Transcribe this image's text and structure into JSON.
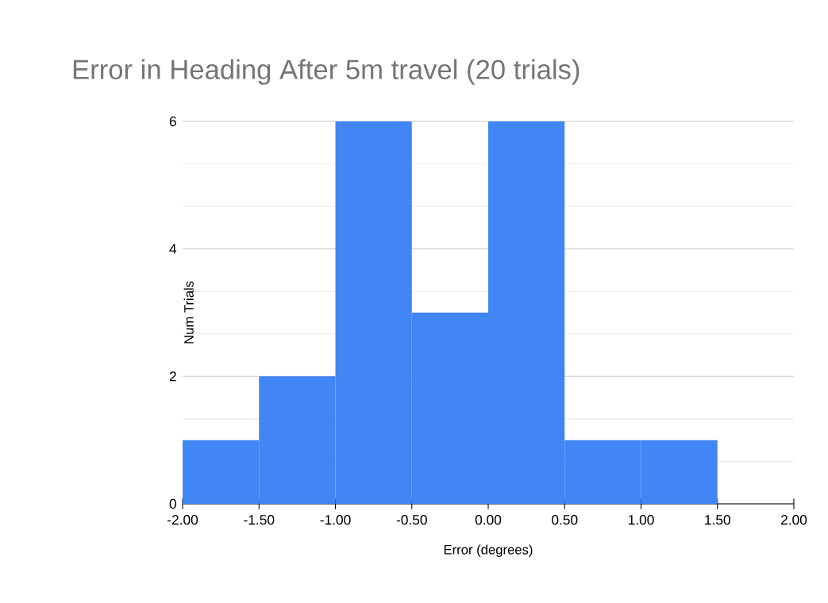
{
  "chart_data": {
    "type": "histogram",
    "title": "Error in Heading After 5m travel (20 trials)",
    "xlabel": "Error (degrees)",
    "ylabel": "Num Trials",
    "bins": [
      -2,
      -1.5,
      -1,
      -0.5,
      0,
      0.5,
      1,
      1.5,
      2
    ],
    "values": [
      1,
      2,
      6,
      3,
      6,
      1,
      1,
      0
    ],
    "color": "#4285f4",
    "xlim": [
      -2,
      2
    ],
    "xticks": [
      {
        "value": -2,
        "label": "-2.00"
      },
      {
        "value": -1.5,
        "label": "-1.50"
      },
      {
        "value": -1,
        "label": "-1.00"
      },
      {
        "value": -0.5,
        "label": "-0.50"
      },
      {
        "value": 0,
        "label": "0.00"
      },
      {
        "value": 0.5,
        "label": "0.50"
      },
      {
        "value": 1,
        "label": "1.00"
      },
      {
        "value": 1.5,
        "label": "1.50"
      },
      {
        "value": 2,
        "label": "2.00"
      }
    ],
    "ylim": [
      0,
      6
    ],
    "yticks": [
      0,
      2,
      4,
      6
    ],
    "grid": "y"
  }
}
